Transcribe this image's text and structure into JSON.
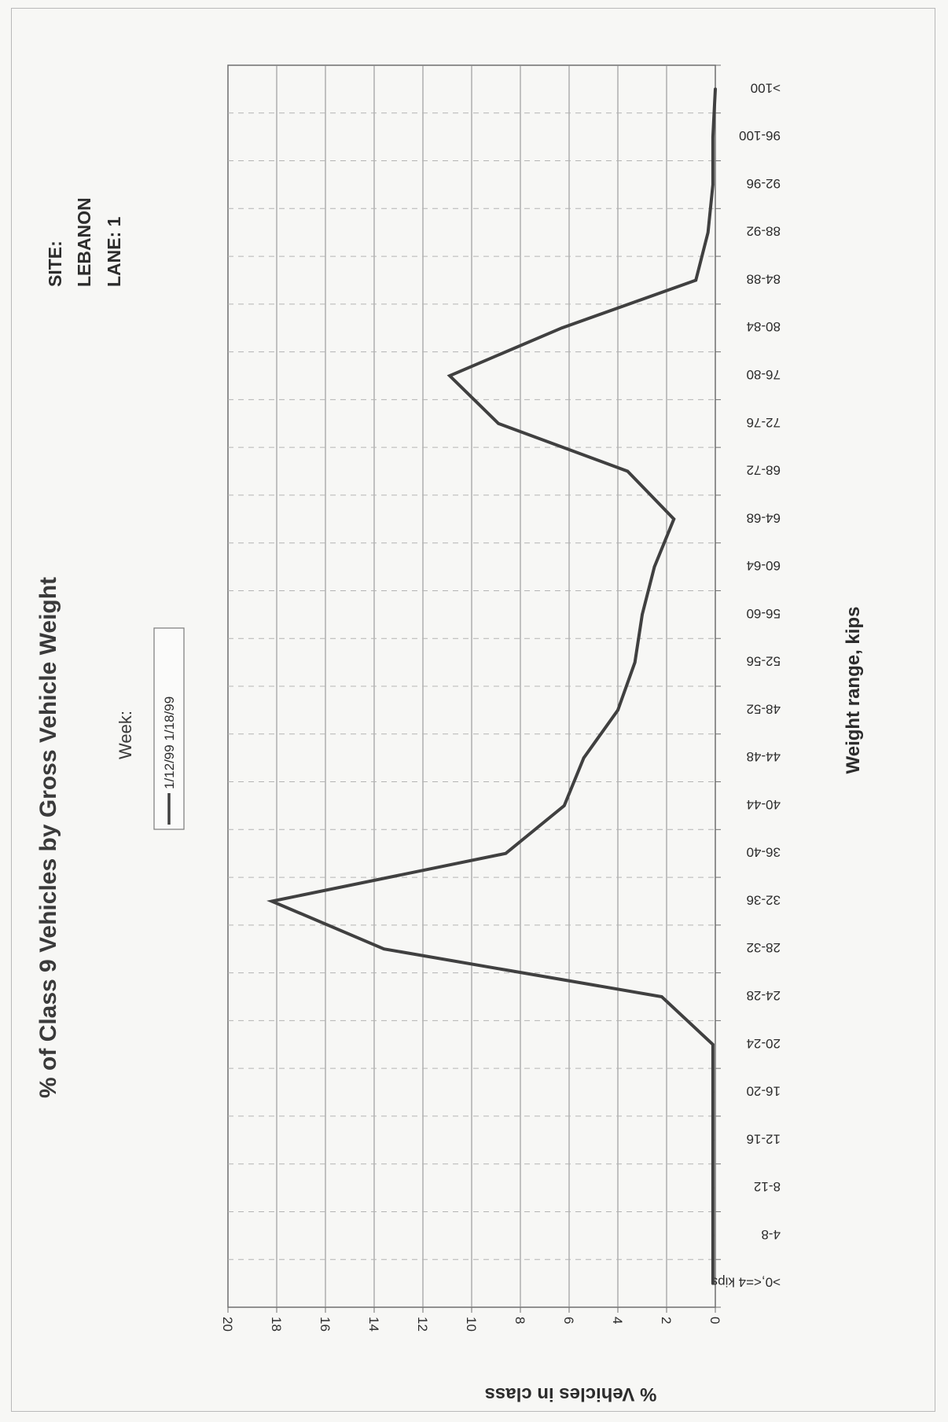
{
  "chart_data": {
    "type": "line",
    "title": "% of Class 9 Vehicles by Gross Vehicle Weight",
    "site": {
      "line1": "SITE:",
      "line2": "LEBANON",
      "line3": "LANE: 1"
    },
    "legend_title": "Week:",
    "xlabel": "Weight range, kips",
    "ylabel": "% Vehicles in class",
    "categories": [
      ">0,<=4 kips",
      "4-8",
      "8-12",
      "12-16",
      "16-20",
      "20-24",
      "24-28",
      "28-32",
      "32-36",
      "36-40",
      "40-44",
      "44-48",
      "48-52",
      "52-56",
      "56-60",
      "60-64",
      "64-68",
      "68-72",
      "72-76",
      "76-80",
      "80-84",
      "84-88",
      "88-92",
      "92-96",
      "96-100",
      ">100"
    ],
    "y_ticks": [
      "0",
      "2",
      "4",
      "6",
      "8",
      "10",
      "12",
      "14",
      "16",
      "18",
      "20"
    ],
    "ylim": [
      0,
      20
    ],
    "grid": true,
    "legend_position": "top-center",
    "orientation": "rotated 90 degrees (page printed landscape)",
    "series": [
      {
        "name": "1/12/99 1/18/99",
        "color": "#404040",
        "values": [
          0.1,
          0.1,
          0.1,
          0.1,
          0.1,
          0.1,
          2.2,
          13.6,
          18.2,
          8.6,
          6.2,
          5.4,
          4.0,
          3.3,
          3.0,
          2.5,
          1.7,
          3.6,
          8.9,
          10.9,
          6.3,
          0.8,
          0.3,
          0.1,
          0.1,
          0.0
        ]
      }
    ]
  }
}
